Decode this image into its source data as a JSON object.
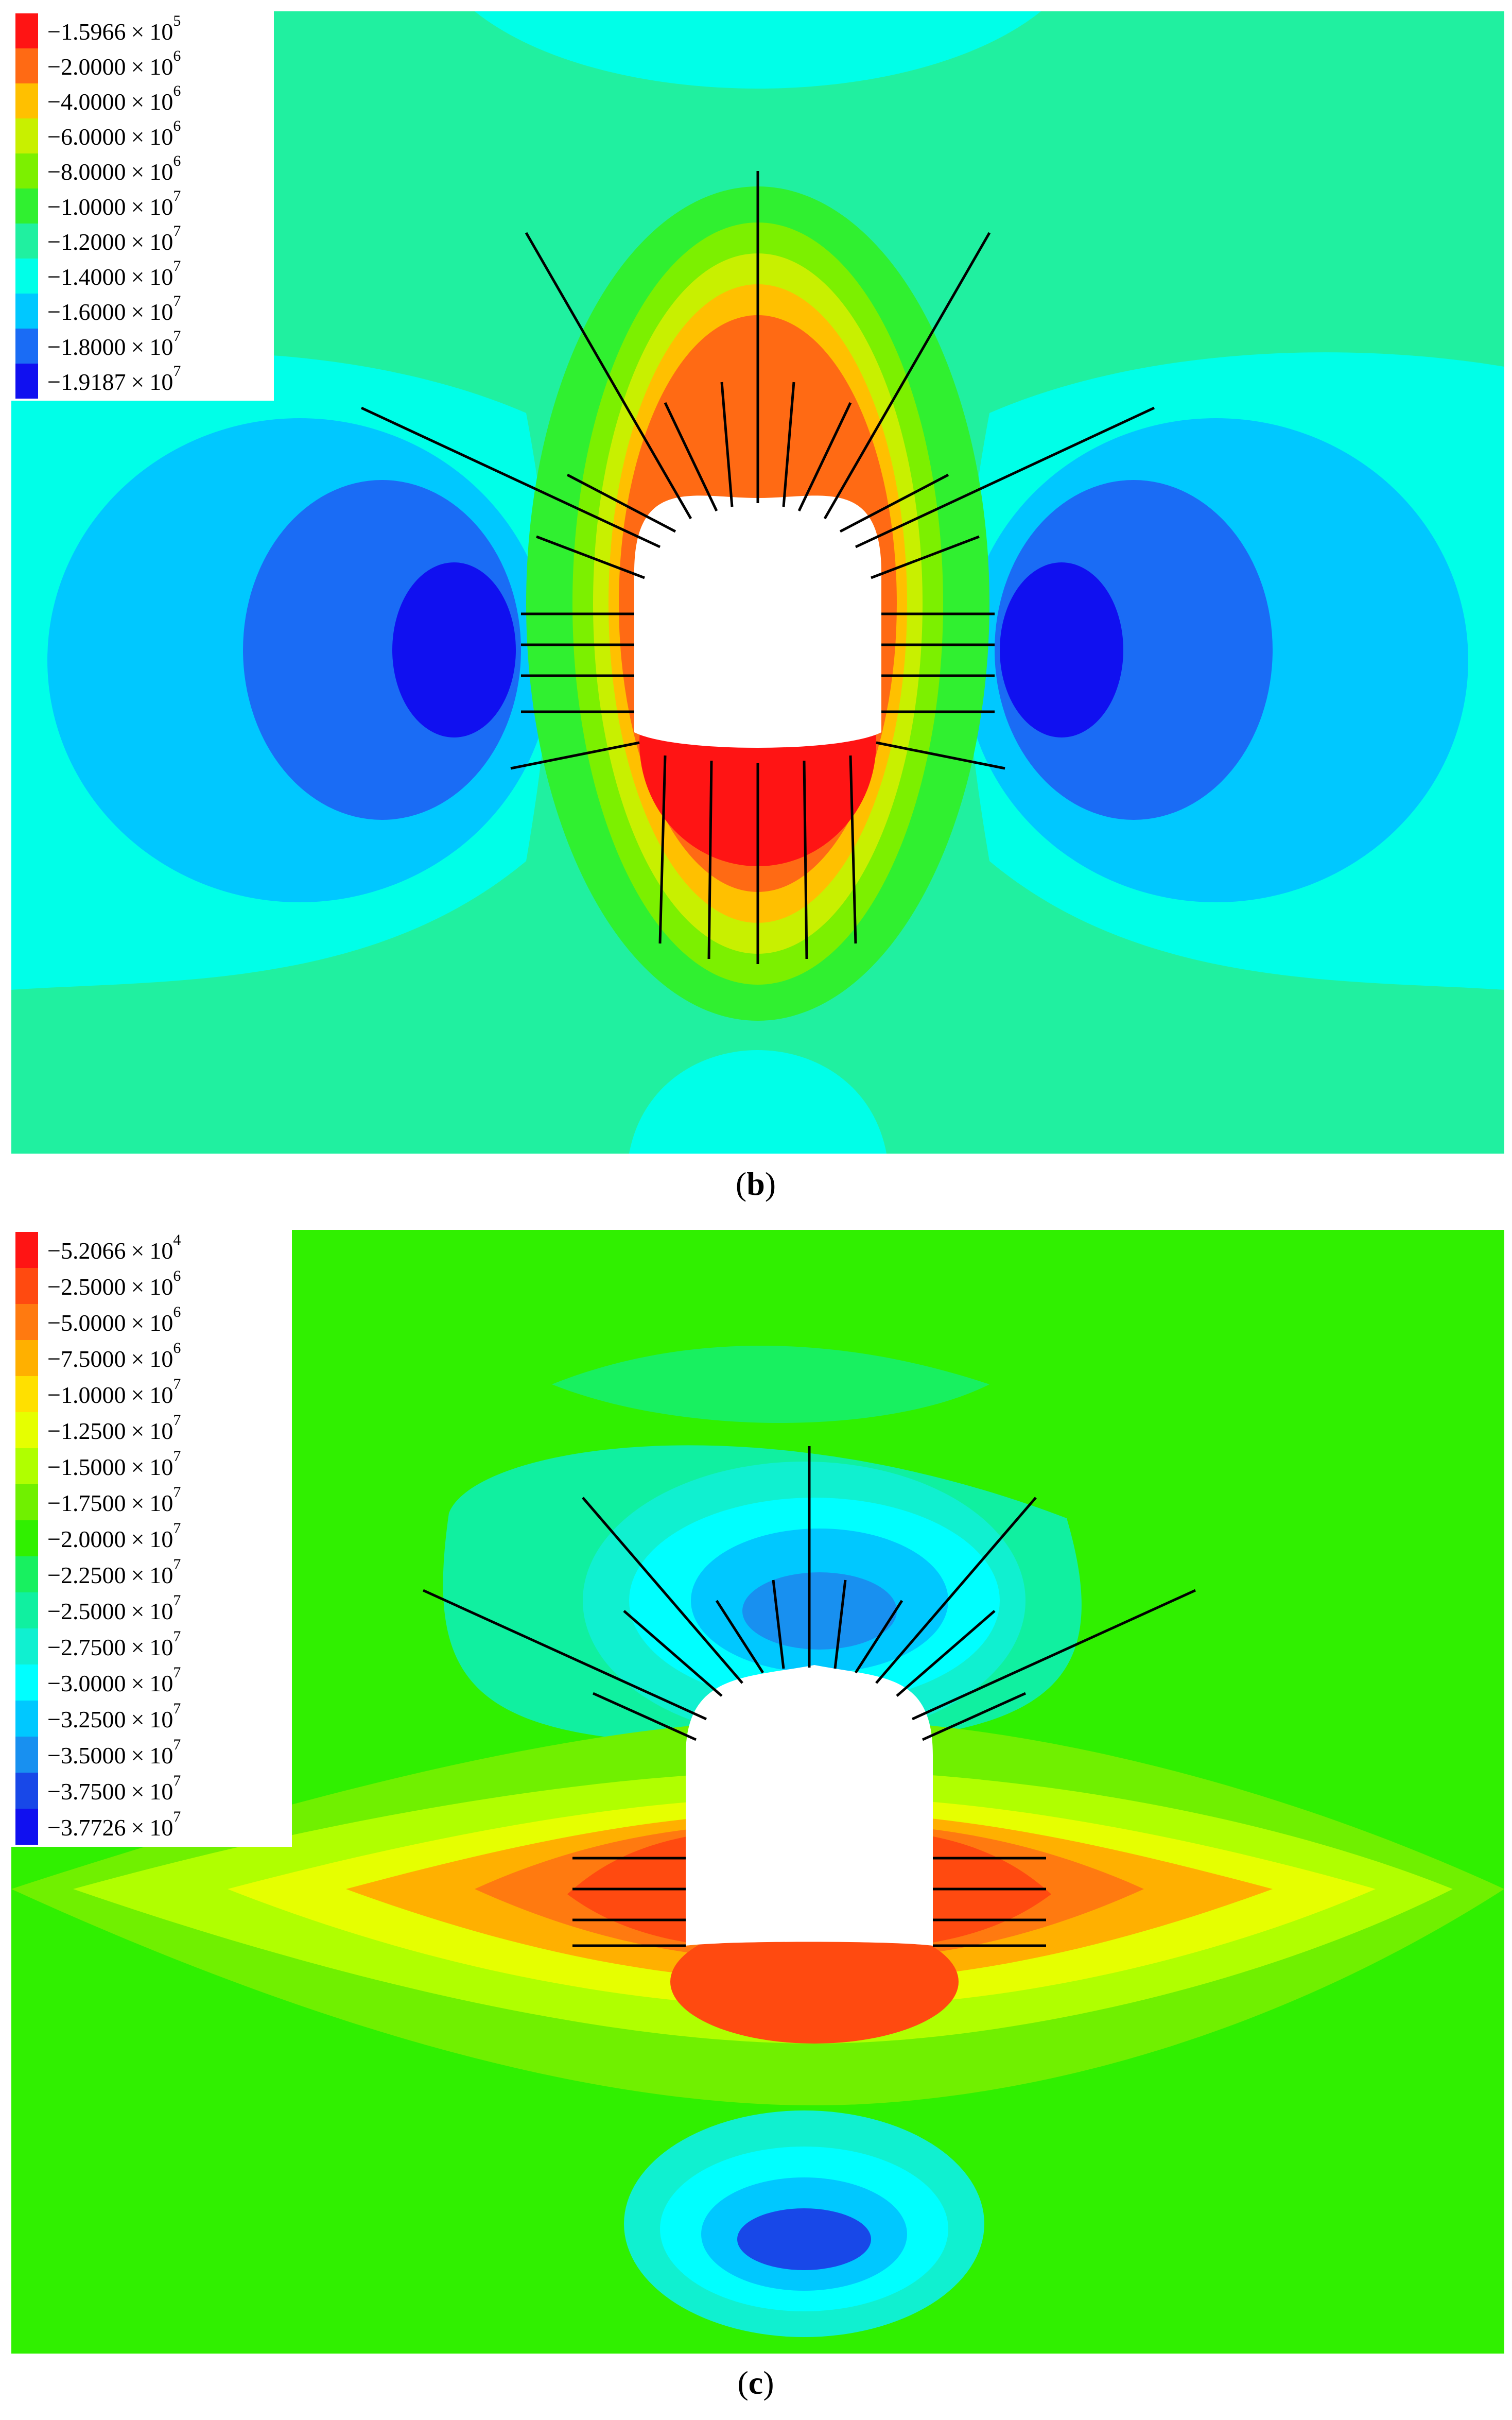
{
  "panels": [
    {
      "id": "b",
      "caption_letter": "b",
      "legend": [
        {
          "mantissa": "−1.5966",
          "exp": "5",
          "color": "#ff1414"
        },
        {
          "mantissa": "−2.0000",
          "exp": "6",
          "color": "#ff6a14"
        },
        {
          "mantissa": "−4.0000",
          "exp": "6",
          "color": "#ffc000"
        },
        {
          "mantissa": "−6.0000",
          "exp": "6",
          "color": "#c8f000"
        },
        {
          "mantissa": "−8.0000",
          "exp": "6",
          "color": "#7cf000"
        },
        {
          "mantissa": "−1.0000",
          "exp": "7",
          "color": "#30f030"
        },
        {
          "mantissa": "−1.2000",
          "exp": "7",
          "color": "#20f0a0"
        },
        {
          "mantissa": "−1.4000",
          "exp": "7",
          "color": "#00ffe8"
        },
        {
          "mantissa": "−1.6000",
          "exp": "7",
          "color": "#00c8ff"
        },
        {
          "mantissa": "−1.8000",
          "exp": "7",
          "color": "#1a6cf5"
        },
        {
          "mantissa": "−1.9187",
          "exp": "7",
          "color": "#1010f0"
        }
      ]
    },
    {
      "id": "c",
      "caption_letter": "c",
      "legend": [
        {
          "mantissa": "−5.2066",
          "exp": "4",
          "color": "#ff1414"
        },
        {
          "mantissa": "−2.5000",
          "exp": "6",
          "color": "#ff4a10"
        },
        {
          "mantissa": "−5.0000",
          "exp": "6",
          "color": "#ff7a10"
        },
        {
          "mantissa": "−7.5000",
          "exp": "6",
          "color": "#ffb000"
        },
        {
          "mantissa": "−1.0000",
          "exp": "7",
          "color": "#ffe000"
        },
        {
          "mantissa": "−1.2500",
          "exp": "7",
          "color": "#e6ff00"
        },
        {
          "mantissa": "−1.5000",
          "exp": "7",
          "color": "#b0ff00"
        },
        {
          "mantissa": "−1.7500",
          "exp": "7",
          "color": "#70f000"
        },
        {
          "mantissa": "−2.0000",
          "exp": "7",
          "color": "#30f000"
        },
        {
          "mantissa": "−2.2500",
          "exp": "7",
          "color": "#18f060"
        },
        {
          "mantissa": "−2.5000",
          "exp": "7",
          "color": "#10f0a0"
        },
        {
          "mantissa": "−2.7500",
          "exp": "7",
          "color": "#10f0d0"
        },
        {
          "mantissa": "−3.0000",
          "exp": "7",
          "color": "#00ffff"
        },
        {
          "mantissa": "−3.2500",
          "exp": "7",
          "color": "#00c8ff"
        },
        {
          "mantissa": "−3.5000",
          "exp": "7",
          "color": "#1890f0"
        },
        {
          "mantissa": "−3.7500",
          "exp": "7",
          "color": "#1848e8"
        },
        {
          "mantissa": "−3.7726",
          "exp": "7",
          "color": "#1010f0"
        }
      ]
    }
  ],
  "times_symbol": "×",
  "base": "10",
  "colors": {
    "bolt": "#000000",
    "tunnel": "#ffffff"
  }
}
